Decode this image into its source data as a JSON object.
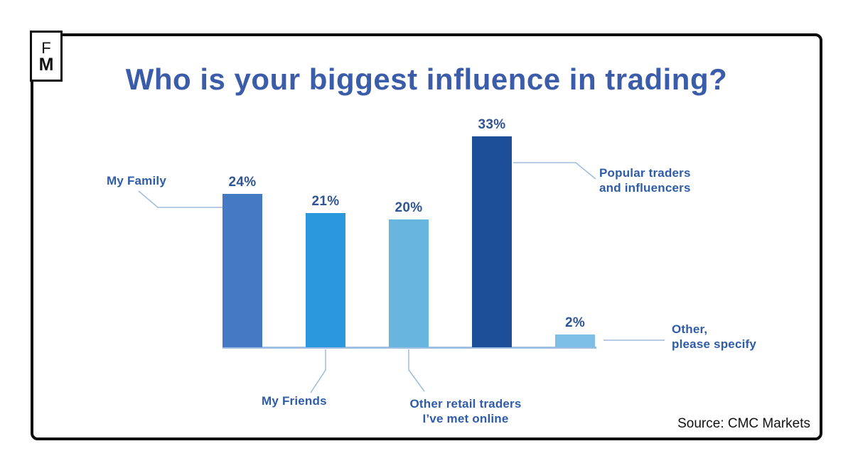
{
  "brand_logo": {
    "letter_top": "F",
    "letter_bottom": "M"
  },
  "title": "Who is your biggest influence in trading?",
  "source_note": "Source: CMC Markets",
  "chart_data": {
    "type": "bar",
    "title": "Who is your biggest influence in trading?",
    "categories": [
      "My Family",
      "My Friends",
      "Other retail traders I’ve met online",
      "Popular traders and influencers",
      "Other, please specify"
    ],
    "values": [
      24,
      21,
      20,
      33,
      2
    ],
    "value_labels": [
      "24%",
      "21%",
      "20%",
      "33%",
      "2%"
    ],
    "unit": "percent",
    "bar_colors": [
      "#4479C4",
      "#2B98DE",
      "#68B5DF",
      "#1C4F97",
      "#7CBEE6"
    ],
    "ylim": [
      0,
      35
    ],
    "grid": false,
    "legend": "none",
    "source": "CMC Markets",
    "annotations": {
      "my_family": "My Family",
      "my_friends": "My Friends",
      "retail_line1": "Other retail traders",
      "retail_line2": "I’ve met online",
      "popular_line1": "Popular traders",
      "popular_line2": "and influencers",
      "other_line1": "Other,",
      "other_line2": "please specify"
    }
  },
  "colors": {
    "title_blue": "#3B5CA9",
    "label_blue": "#2E5CA8",
    "value_blue": "#2F5496",
    "axis_light_blue": "#9FC0E2",
    "connector_blue": "#9DBCDE",
    "frame_black": "#0D0D0D"
  }
}
